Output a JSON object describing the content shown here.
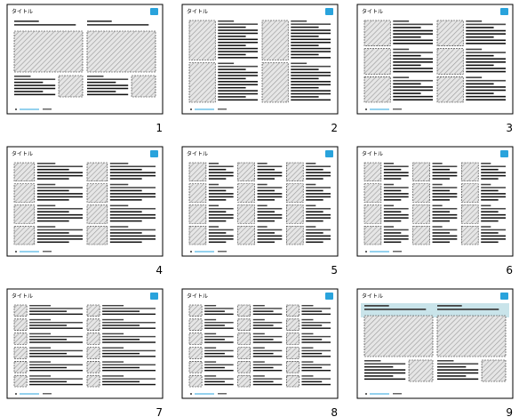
{
  "slides": [
    {
      "title": "タイトル",
      "number": 1
    },
    {
      "title": "タイトル",
      "number": 2
    },
    {
      "title": "タイトル",
      "number": 3
    },
    {
      "title": "タイトル",
      "number": 4
    },
    {
      "title": "タイトル",
      "number": 5
    },
    {
      "title": "タイトル",
      "number": 6
    },
    {
      "title": "タイトル",
      "number": 7
    },
    {
      "title": "タイトル",
      "number": 8
    },
    {
      "title": "タイトル",
      "number": 9
    }
  ]
}
